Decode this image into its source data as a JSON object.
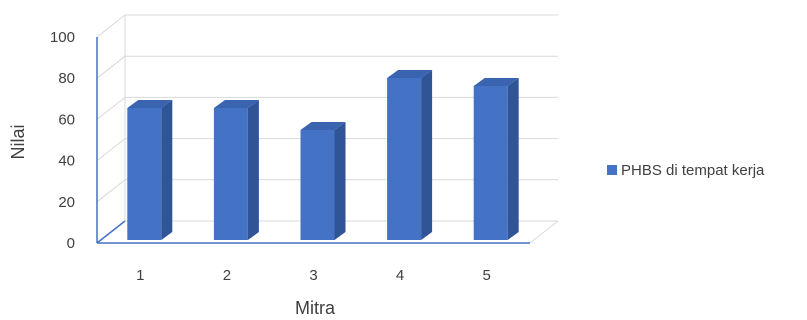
{
  "chart_data": {
    "type": "bar",
    "style": "3d-column",
    "categories": [
      "1",
      "2",
      "3",
      "4",
      "5"
    ],
    "series": [
      {
        "name": "PHBS di tempat kerja",
        "values": [
          66,
          66,
          55,
          81,
          77
        ]
      }
    ],
    "xlabel": "Mitra",
    "ylabel": "Nilai",
    "ylim": [
      0,
      100
    ],
    "yticks": [
      "0",
      "20",
      "40",
      "60",
      "80",
      "100"
    ],
    "grid": true,
    "legend_position": "right",
    "colors": {
      "bar_front": "#4472C4",
      "bar_side": "#2F5597",
      "bar_top": "#3A64B0",
      "axis": "#4472C4",
      "grid": "#D9D9D9",
      "text": "#404040"
    }
  }
}
